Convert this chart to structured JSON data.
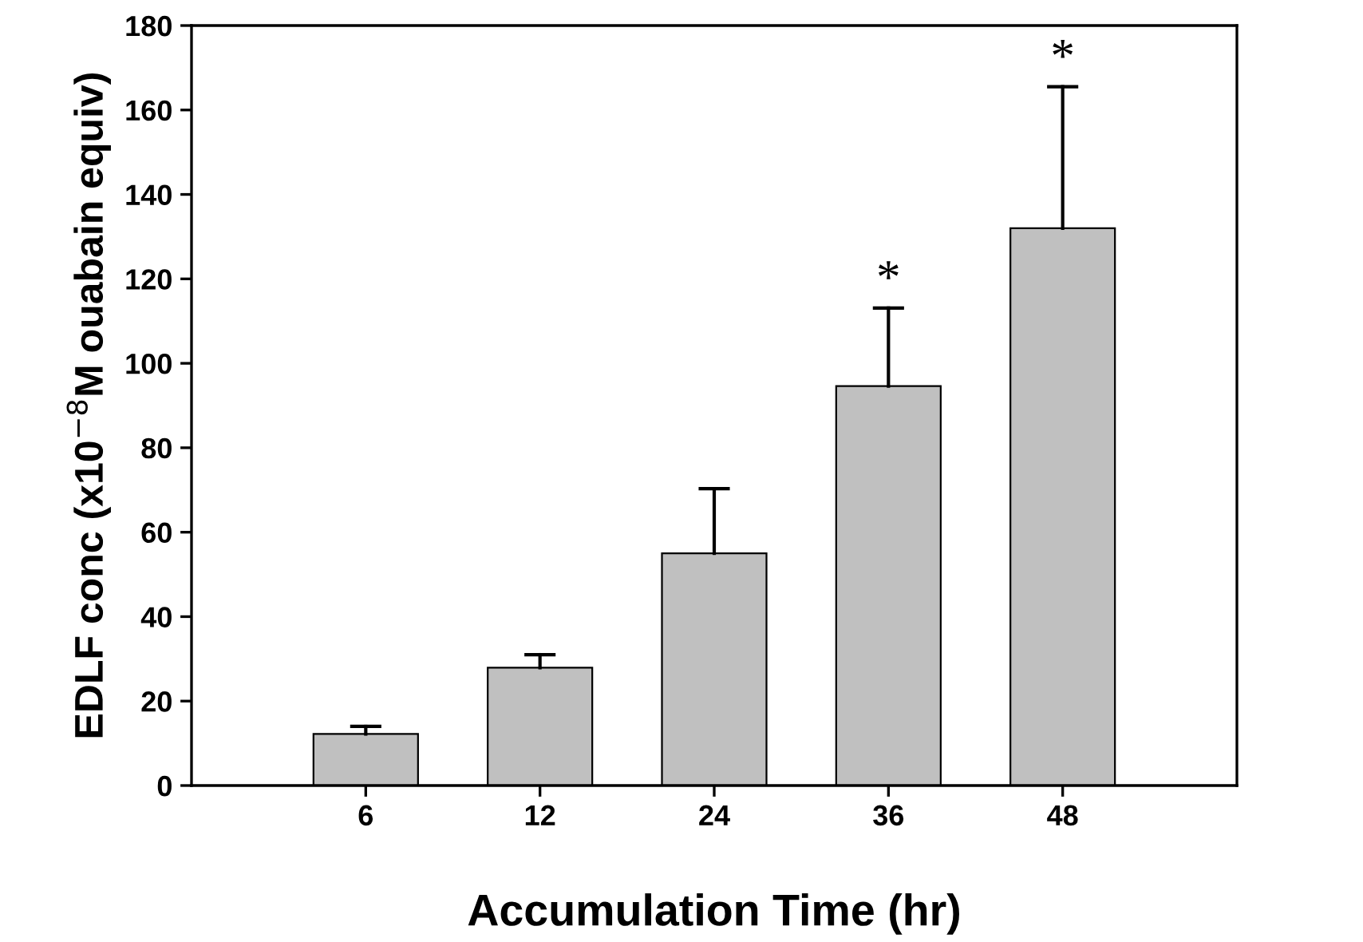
{
  "chart_data": {
    "type": "bar",
    "xlabel": "Accumulation Time (hr)",
    "ylabel": "EDLF conc (x10$^{−8}$M ouabain equiv)",
    "categories": [
      "6",
      "12",
      "24",
      "36",
      "48"
    ],
    "values": [
      12.2,
      27.9,
      55.0,
      94.6,
      132.0
    ],
    "errors": [
      [
        12.2,
        14.0
      ],
      [
        27.9,
        31.0
      ],
      [
        55.0,
        70.3
      ],
      [
        94.6,
        113.1
      ],
      [
        132.0,
        165.5
      ]
    ],
    "color": "#c0c0c0",
    "ylim": [
      0,
      180
    ],
    "yticks": [
      0,
      20,
      40,
      60,
      80,
      100,
      120,
      140,
      160,
      180
    ],
    "annotations": [
      {
        "text": "*",
        "x": "36",
        "y": 113.1
      },
      {
        "text": "*",
        "x": "48",
        "y": 165.5
      }
    ],
    "grid": false
  }
}
